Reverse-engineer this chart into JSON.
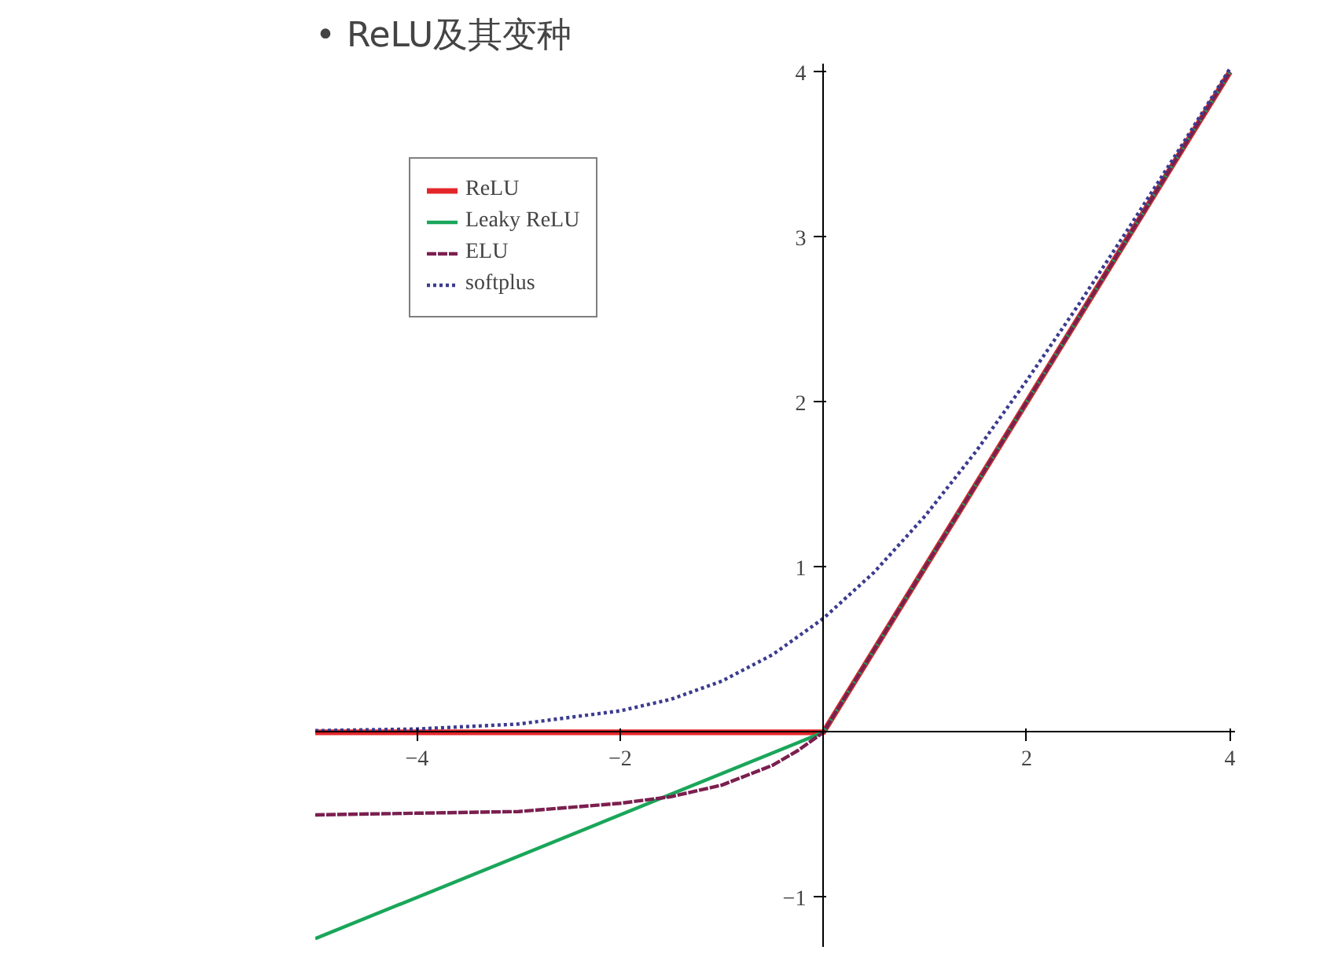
{
  "chart_data": {
    "type": "line",
    "title": "• ReLU及其变种",
    "xlim": [
      -5,
      4.05
    ],
    "ylim": [
      -1.3,
      4.05
    ],
    "xticks": [
      {
        "value": -4,
        "label": "−4"
      },
      {
        "value": -2,
        "label": "−2"
      },
      2,
      4
    ],
    "yticks": [
      {
        "value": -1,
        "label": "−1"
      },
      1,
      2,
      3,
      4
    ],
    "grid": false,
    "legend": "top left",
    "marker": "none",
    "series": [
      {
        "name": "ReLU",
        "color": "#e3262a",
        "line_style": "solid",
        "x": [
          -5,
          0,
          4
        ],
        "values": [
          0,
          0,
          4
        ]
      },
      {
        "name": "Leaky ReLU",
        "color": "#1aa65a",
        "line_style": "solid",
        "x": [
          -5,
          0,
          4
        ],
        "values": [
          -1.25,
          0,
          4
        ]
      },
      {
        "name": "ELU",
        "color": "#7b1f4f",
        "line_style": "dashed",
        "x": [
          -5,
          -4,
          -3,
          -2,
          -1.5,
          -1,
          -0.75,
          -0.5,
          -0.25,
          0,
          4
        ],
        "values": [
          -0.5,
          -0.49,
          -0.48,
          -0.43,
          -0.39,
          -0.32,
          -0.26,
          -0.2,
          -0.11,
          0,
          4
        ]
      },
      {
        "name": "softplus",
        "color": "#3b3b8f",
        "line_style": "dotted",
        "x": [
          -5,
          -4,
          -3,
          -2,
          -1.5,
          -1,
          -0.5,
          0,
          0.5,
          1,
          1.5,
          2,
          2.5,
          3,
          3.5,
          4
        ],
        "values": [
          0.01,
          0.02,
          0.05,
          0.13,
          0.2,
          0.31,
          0.47,
          0.69,
          0.97,
          1.31,
          1.7,
          2.13,
          2.58,
          3.05,
          3.53,
          4.02
        ]
      }
    ]
  }
}
